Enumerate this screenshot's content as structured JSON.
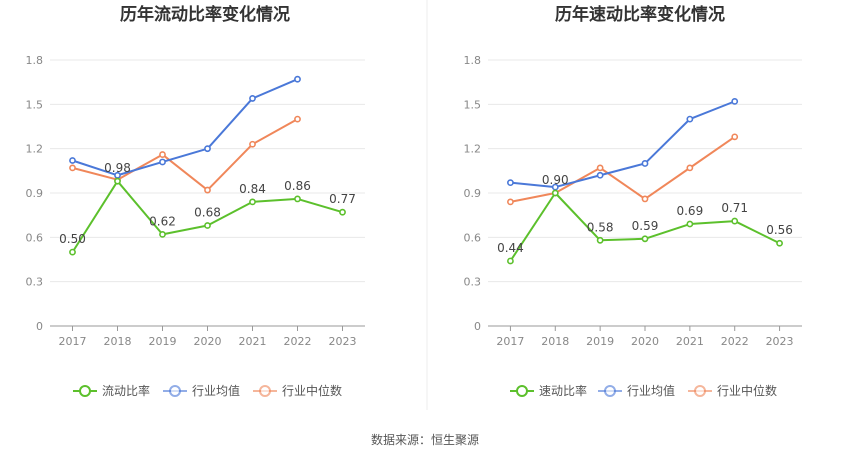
{
  "colors": {
    "current": "#5cc02c",
    "avg": "#4a78d8",
    "median": "#f0875a"
  },
  "footer": {
    "source": "数据来源：恒生聚源"
  },
  "chart_data": [
    {
      "type": "line",
      "title": "历年流动比率变化情况",
      "categories": [
        "2017",
        "2018",
        "2019",
        "2020",
        "2021",
        "2022",
        "2023"
      ],
      "yticks": [
        "0",
        "0.3",
        "0.6",
        "0.9",
        "1.2",
        "1.5",
        "1.8"
      ],
      "ylim": [
        0,
        1.8
      ],
      "series": [
        {
          "name": "流动比率",
          "values": [
            0.5,
            0.98,
            0.62,
            0.68,
            0.84,
            0.86,
            0.77
          ],
          "labels": [
            "0.50",
            "0.98",
            "0.62",
            "0.68",
            "0.84",
            "0.86",
            "0.77"
          ]
        },
        {
          "name": "行业均值",
          "values": [
            1.12,
            1.02,
            1.11,
            1.2,
            1.54,
            1.67,
            null
          ]
        },
        {
          "name": "行业中位数",
          "values": [
            1.07,
            0.99,
            1.16,
            0.92,
            1.23,
            1.4,
            null
          ]
        }
      ],
      "legend": "bottom"
    },
    {
      "type": "line",
      "title": "历年速动比率变化情况",
      "categories": [
        "2017",
        "2018",
        "2019",
        "2020",
        "2021",
        "2022",
        "2023"
      ],
      "yticks": [
        "0",
        "0.3",
        "0.6",
        "0.9",
        "1.2",
        "1.5",
        "1.8"
      ],
      "ylim": [
        0,
        1.8
      ],
      "series": [
        {
          "name": "速动比率",
          "values": [
            0.44,
            0.9,
            0.58,
            0.59,
            0.69,
            0.71,
            0.56
          ],
          "labels": [
            "0.44",
            "0.90",
            "0.58",
            "0.59",
            "0.69",
            "0.71",
            "0.56"
          ]
        },
        {
          "name": "行业均值",
          "values": [
            0.97,
            0.94,
            1.02,
            1.1,
            1.4,
            1.52,
            null
          ]
        },
        {
          "name": "行业中位数",
          "values": [
            0.84,
            0.9,
            1.07,
            0.86,
            1.07,
            1.28,
            null
          ]
        }
      ],
      "legend": "bottom"
    }
  ]
}
